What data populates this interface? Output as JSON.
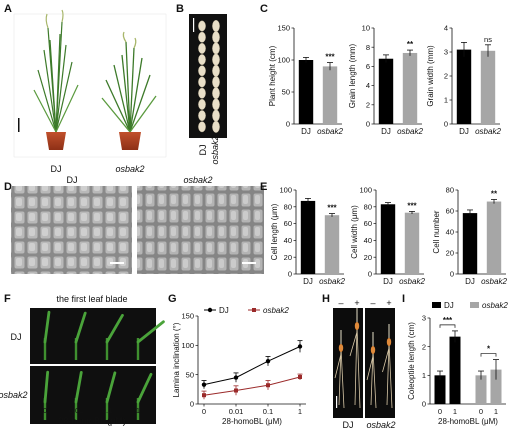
{
  "panels": {
    "A": {
      "label": "A",
      "genotypes": [
        "DJ",
        "osbak2"
      ]
    },
    "B": {
      "label": "B",
      "genotypes": [
        "DJ",
        "osbak2"
      ]
    },
    "C": {
      "label": "C"
    },
    "D": {
      "label": "D",
      "genotypes": [
        "DJ",
        "osbak2"
      ]
    },
    "E": {
      "label": "E"
    },
    "F": {
      "label": "F",
      "title": "the first leaf blade",
      "rows": [
        "DJ",
        "osbak2"
      ],
      "x_ticks": [
        "0",
        "0.01",
        "0.1",
        "1"
      ],
      "xlabel": "28-homoBL (μM)"
    },
    "G": {
      "label": "G"
    },
    "H": {
      "label": "H",
      "treat": [
        "–",
        "+"
      ],
      "genotypes": [
        "DJ",
        "osbak2"
      ]
    },
    "I": {
      "label": "I"
    }
  },
  "chart_data": [
    {
      "id": "C1",
      "type": "bar",
      "categories": [
        "DJ",
        "osbak2"
      ],
      "values": [
        100,
        90
      ],
      "errors": [
        4,
        6
      ],
      "ylabel": "Plant height (cm)",
      "ylim": [
        0,
        150
      ],
      "yticks": [
        "0",
        "50",
        "100",
        "150"
      ],
      "significance": [
        "",
        "***"
      ],
      "colors": [
        "#000000",
        "#a6a6a6"
      ]
    },
    {
      "id": "C2",
      "type": "bar",
      "categories": [
        "DJ",
        "osbak2"
      ],
      "values": [
        6.8,
        7.4
      ],
      "errors": [
        0.4,
        0.3
      ],
      "ylabel": "Grain length (mm)",
      "ylim": [
        0,
        10
      ],
      "yticks": [
        "0",
        "2",
        "4",
        "6",
        "8",
        "10"
      ],
      "significance": [
        "",
        "**"
      ],
      "colors": [
        "#000000",
        "#a6a6a6"
      ]
    },
    {
      "id": "C3",
      "type": "bar",
      "categories": [
        "DJ",
        "osbak2"
      ],
      "values": [
        3.1,
        3.05
      ],
      "errors": [
        0.3,
        0.25
      ],
      "ylabel": "Grain width (mm)",
      "ylim": [
        0,
        4
      ],
      "yticks": [
        "0",
        "1",
        "2",
        "3",
        "4"
      ],
      "significance": [
        "",
        "ns"
      ],
      "colors": [
        "#000000",
        "#a6a6a6"
      ]
    },
    {
      "id": "E1",
      "type": "bar",
      "categories": [
        "DJ",
        "osbak2"
      ],
      "values": [
        87,
        70
      ],
      "errors": [
        3,
        2
      ],
      "ylabel": "Cell length (μm)",
      "ylim": [
        0,
        100
      ],
      "yticks": [
        "0",
        "20",
        "40",
        "60",
        "80",
        "100"
      ],
      "significance": [
        "",
        "***"
      ],
      "colors": [
        "#000000",
        "#a6a6a6"
      ]
    },
    {
      "id": "E2",
      "type": "bar",
      "categories": [
        "DJ",
        "osbak2"
      ],
      "values": [
        83,
        73
      ],
      "errors": [
        2,
        1.5
      ],
      "ylabel": "Cell width (μm)",
      "ylim": [
        0,
        100
      ],
      "yticks": [
        "0",
        "20",
        "40",
        "60",
        "80",
        "100"
      ],
      "significance": [
        "",
        "***"
      ],
      "colors": [
        "#000000",
        "#a6a6a6"
      ]
    },
    {
      "id": "E3",
      "type": "bar",
      "categories": [
        "DJ",
        "osbak2"
      ],
      "values": [
        58,
        69
      ],
      "errors": [
        3,
        2
      ],
      "ylabel": "Cell number",
      "ylim": [
        0,
        80
      ],
      "yticks": [
        "0",
        "20",
        "40",
        "60",
        "80"
      ],
      "significance": [
        "",
        "**"
      ],
      "colors": [
        "#000000",
        "#a6a6a6"
      ]
    },
    {
      "id": "G",
      "type": "line",
      "x": [
        "0",
        "0.01",
        "0.1",
        "1"
      ],
      "series": [
        {
          "name": "DJ",
          "values": [
            33,
            45,
            73,
            98
          ],
          "errors": [
            7,
            8,
            8,
            10
          ],
          "color": "#000000"
        },
        {
          "name": "osbak2",
          "values": [
            15,
            23,
            32,
            46
          ],
          "errors": [
            7,
            8,
            8,
            5
          ],
          "color": "#9b2a2a"
        }
      ],
      "ylabel": "Lamina inclination (°)",
      "xlabel": "28-homoBL (μM)",
      "ylim": [
        0,
        150
      ],
      "yticks": [
        "0",
        "50",
        "100",
        "150"
      ],
      "legend": "top-left"
    },
    {
      "id": "I",
      "type": "bar",
      "categories": [
        "0",
        "1",
        "0",
        "1"
      ],
      "groups": [
        "DJ",
        "DJ",
        "osbak2",
        "osbak2"
      ],
      "values": [
        1.0,
        2.35,
        1.0,
        1.2
      ],
      "errors": [
        0.15,
        0.2,
        0.15,
        0.35
      ],
      "ylabel": "Coleoptile length (cm)",
      "xlabel": "28-homoBL (μM)",
      "ylim": [
        0,
        3
      ],
      "yticks": [
        "0",
        "1",
        "2",
        "3"
      ],
      "legend_names": [
        "DJ",
        "osbak2"
      ],
      "colors": [
        "#000000",
        "#a6a6a6"
      ],
      "significance": [
        {
          "pair": [
            0,
            1
          ],
          "label": "***"
        },
        {
          "pair": [
            2,
            3
          ],
          "label": "*"
        }
      ]
    }
  ]
}
